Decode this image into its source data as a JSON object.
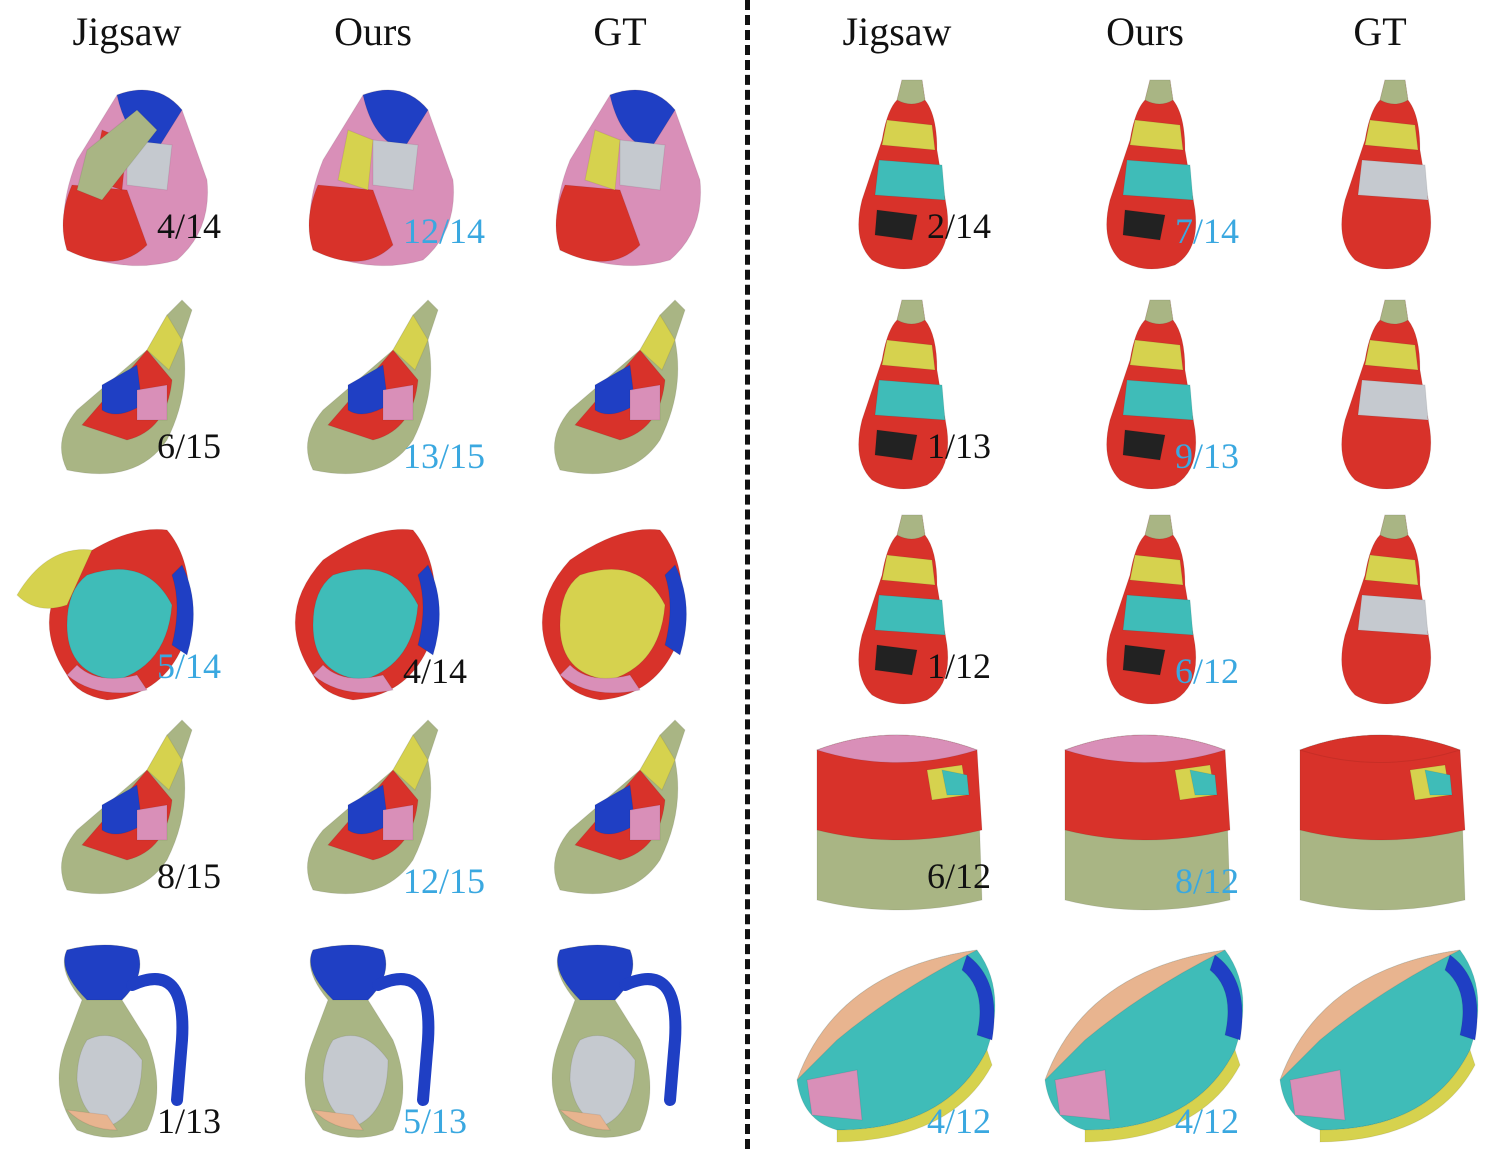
{
  "headers": {
    "left": [
      "Jigsaw",
      "Ours",
      "GT"
    ],
    "right": [
      "Jigsaw",
      "Ours",
      "GT"
    ]
  },
  "colors": {
    "red": "#d8322a",
    "pink": "#d98fb8",
    "olive": "#a9b584",
    "blue": "#1f3fc4",
    "cyan": "#3fbcb8",
    "yellow": "#d6d24e",
    "gray": "#c5c9cf",
    "peach": "#e8b48f",
    "orange": "#d98545",
    "highlight": "#3aa8e0"
  },
  "rows": [
    {
      "left": {
        "shape": "cylinder",
        "jigsaw": "4/14",
        "ours": "12/14",
        "best": "ours"
      },
      "right": {
        "shape": "bottle",
        "jigsaw": "2/14",
        "ours": "7/14",
        "best": "ours"
      }
    },
    {
      "left": {
        "shape": "wine-bottle",
        "jigsaw": "6/15",
        "ours": "13/15",
        "best": "ours"
      },
      "right": {
        "shape": "bottle",
        "jigsaw": "1/13",
        "ours": "9/13",
        "best": "ours"
      }
    },
    {
      "left": {
        "shape": "egg-vase",
        "jigsaw": "5/14",
        "ours": "4/14",
        "best": "jigsaw"
      },
      "right": {
        "shape": "bottle",
        "jigsaw": "1/12",
        "ours": "6/12",
        "best": "ours"
      }
    },
    {
      "left": {
        "shape": "wine-bottle",
        "jigsaw": "8/15",
        "ours": "12/15",
        "best": "ours"
      },
      "right": {
        "shape": "jar",
        "jigsaw": "6/12",
        "ours": "8/12",
        "best": "ours"
      }
    },
    {
      "left": {
        "shape": "pitcher",
        "jigsaw": "1/13",
        "ours": "5/13",
        "best": "ours"
      },
      "right": {
        "shape": "bowl",
        "jigsaw": "4/12",
        "ours": "4/12",
        "best": "both"
      }
    }
  ]
}
